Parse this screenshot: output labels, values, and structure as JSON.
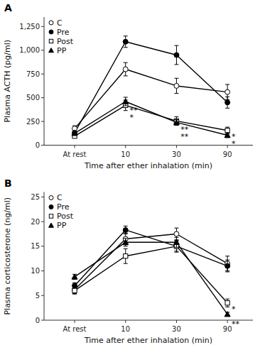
{
  "chart_data": [
    {
      "type": "line",
      "title": "A",
      "xlabel": "Time after ether inhalation (min)",
      "ylabel": "Plasma ACTH (pg/ml)",
      "categories": [
        "At rest",
        "10",
        "30",
        "90"
      ],
      "ylim": [
        0,
        1350
      ],
      "yticks": [
        0,
        250,
        500,
        750,
        {
          "value": 1000,
          "label": "1,000"
        },
        {
          "value": 1250,
          "label": "1,250"
        }
      ],
      "grid": false,
      "legend": "upper left",
      "series": [
        {
          "name": "C",
          "color": "black",
          "marker": "open-circle",
          "values": [
            175,
            800,
            625,
            560
          ],
          "errors": [
            30,
            70,
            80,
            80
          ]
        },
        {
          "name": "Pre",
          "color": "black",
          "marker": "filled-circle",
          "values": [
            130,
            1090,
            950,
            450
          ],
          "errors": [
            20,
            60,
            100,
            60
          ]
        },
        {
          "name": "Post",
          "color": "black",
          "marker": "open-square",
          "values": [
            95,
            420,
            255,
            155
          ],
          "errors": [
            15,
            55,
            45,
            35
          ]
        },
        {
          "name": "PP",
          "color": "black",
          "marker": "filled-triangle",
          "values": [
            125,
            460,
            240,
            105
          ],
          "errors": [
            20,
            45,
            30,
            25
          ]
        }
      ],
      "annotations": [
        {
          "text": "**",
          "category": "10",
          "y": 370
        },
        {
          "text": "*",
          "category": "10",
          "y": 295
        },
        {
          "text": "**",
          "category": "30",
          "y": 165
        },
        {
          "text": "**",
          "category": "30",
          "y": 90
        },
        {
          "text": "*",
          "category": "90",
          "y": 90
        },
        {
          "text": "*",
          "category": "90",
          "y": 15
        }
      ]
    },
    {
      "type": "line",
      "title": "B",
      "xlabel": "Time after ether inhalation (min)",
      "ylabel": "Plasma corticosterone (ng/ml)",
      "categories": [
        "At rest",
        "10",
        "30",
        "90"
      ],
      "ylim": [
        0,
        26
      ],
      "yticks": [
        0,
        5,
        10,
        15,
        20,
        25
      ],
      "grid": false,
      "legend": "upper left",
      "series": [
        {
          "name": "C",
          "color": "black",
          "marker": "open-circle",
          "values": [
            6.2,
            16.5,
            17.5,
            11.5
          ],
          "errors": [
            0.8,
            1.2,
            1.2,
            1.5
          ]
        },
        {
          "name": "Pre",
          "color": "black",
          "marker": "filled-circle",
          "values": [
            7.0,
            18.3,
            15.0,
            11.0
          ],
          "errors": [
            0.6,
            0.8,
            1.0,
            1.2
          ]
        },
        {
          "name": "Post",
          "color": "black",
          "marker": "open-square",
          "values": [
            6.0,
            13.0,
            15.0,
            3.5
          ],
          "errors": [
            0.7,
            1.5,
            1.2,
            0.8
          ]
        },
        {
          "name": "PP",
          "color": "black",
          "marker": "filled-triangle",
          "values": [
            8.8,
            15.8,
            15.8,
            1.2
          ],
          "errors": [
            0.5,
            0.8,
            1.0,
            0.4
          ]
        }
      ],
      "annotations": [
        {
          "text": "*",
          "category": "90",
          "y": 2.2
        },
        {
          "text": "**",
          "category": "90",
          "y": -0.8
        }
      ]
    }
  ]
}
